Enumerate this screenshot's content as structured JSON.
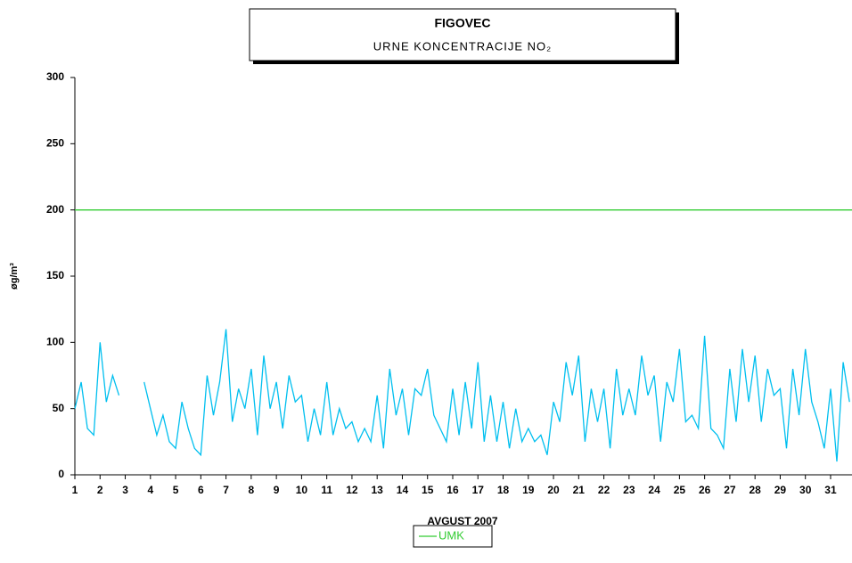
{
  "chart_data": {
    "type": "line",
    "title": "FIGOVEC",
    "subtitle": "URNE KONCENTRACIJE NO₂",
    "y_label": "øg/m³",
    "x_label": "AVGUST 2007",
    "xlim": [
      1,
      31.85
    ],
    "xticks": [
      1,
      2,
      3,
      4,
      5,
      6,
      7,
      8,
      9,
      10,
      11,
      12,
      13,
      14,
      15,
      16,
      17,
      18,
      19,
      20,
      21,
      22,
      23,
      24,
      25,
      26,
      27,
      28,
      29,
      30,
      31
    ],
    "ylim": [
      0,
      300
    ],
    "yticks": [
      0,
      50,
      100,
      150,
      200,
      250,
      300
    ],
    "series": [
      {
        "color": "#00bfef",
        "x": [
          1,
          1.25,
          1.5,
          1.75,
          2,
          2.25,
          2.5,
          2.75,
          3,
          3.25,
          3.5,
          3.75,
          4,
          4.25,
          4.5,
          4.75,
          5,
          5.25,
          5.5,
          5.75,
          6,
          6.25,
          6.5,
          6.75,
          7,
          7.25,
          7.5,
          7.75,
          8,
          8.25,
          8.5,
          8.75,
          9,
          9.25,
          9.5,
          9.75,
          10,
          10.25,
          10.5,
          10.75,
          11,
          11.25,
          11.5,
          11.75,
          12,
          12.25,
          12.5,
          12.75,
          13,
          13.25,
          13.5,
          13.75,
          14,
          14.25,
          14.5,
          14.75,
          15,
          15.25,
          15.5,
          15.75,
          16,
          16.25,
          16.5,
          16.75,
          17,
          17.25,
          17.5,
          17.75,
          18,
          18.25,
          18.5,
          18.75,
          19,
          19.25,
          19.5,
          19.75,
          20,
          20.25,
          20.5,
          20.75,
          21,
          21.25,
          21.5,
          21.75,
          22,
          22.25,
          22.5,
          22.75,
          23,
          23.25,
          23.5,
          23.75,
          24,
          24.25,
          24.5,
          24.75,
          25,
          25.25,
          25.5,
          25.75,
          26,
          26.25,
          26.5,
          26.75,
          27,
          27.25,
          27.5,
          27.75,
          28,
          28.25,
          28.5,
          28.75,
          29,
          29.25,
          29.5,
          29.75,
          30,
          30.25,
          30.5,
          30.75,
          31,
          31.25,
          31.5,
          31.75
        ],
        "values": [
          50,
          70,
          35,
          30,
          100,
          55,
          75,
          60,
          null,
          null,
          null,
          70,
          50,
          30,
          45,
          25,
          20,
          55,
          35,
          20,
          15,
          75,
          45,
          70,
          110,
          40,
          65,
          50,
          80,
          30,
          90,
          50,
          70,
          35,
          75,
          55,
          60,
          25,
          50,
          30,
          70,
          30,
          50,
          35,
          40,
          25,
          35,
          25,
          60,
          20,
          80,
          45,
          65,
          30,
          65,
          60,
          80,
          45,
          35,
          25,
          65,
          30,
          70,
          35,
          85,
          25,
          60,
          25,
          55,
          20,
          50,
          25,
          35,
          25,
          30,
          15,
          55,
          40,
          85,
          60,
          90,
          25,
          65,
          40,
          65,
          20,
          80,
          45,
          65,
          45,
          90,
          60,
          75,
          25,
          70,
          55,
          95,
          40,
          45,
          35,
          105,
          35,
          30,
          20,
          80,
          40,
          95,
          55,
          90,
          40,
          80,
          60,
          65,
          20,
          80,
          45,
          95,
          55,
          40,
          20,
          65,
          10,
          85,
          55
        ]
      },
      {
        "name": "UMK",
        "color": "#33cc33",
        "x": [
          1,
          31.85
        ],
        "values": [
          200,
          200
        ]
      }
    ]
  }
}
